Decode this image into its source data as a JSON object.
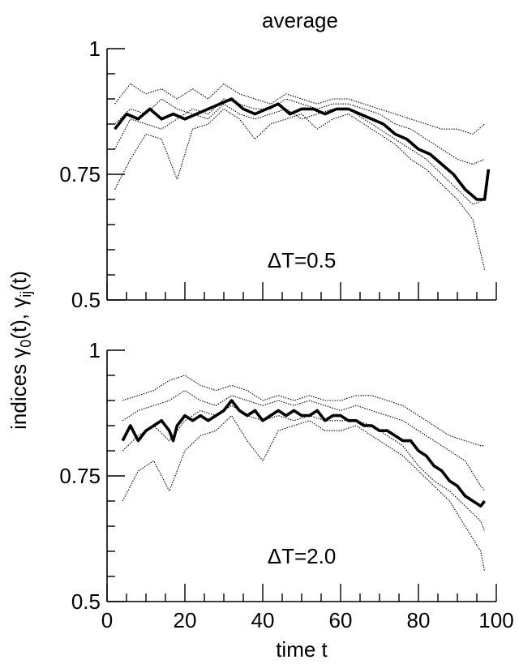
{
  "chart_data": [
    {
      "type": "line",
      "title": "average",
      "ylabel": "indices γ0(t), γij(t)",
      "annotation": "ΔT=0.5",
      "xlim": [
        0,
        100
      ],
      "ylim": [
        0.5,
        1
      ],
      "yticks": [
        0.5,
        0.75,
        1
      ],
      "yticklabels": [
        "0.5",
        "0.75",
        "1"
      ],
      "xticklabels": [],
      "grid": false,
      "series": [
        {
          "style": "thick-solid",
          "x": [
            2,
            5,
            8,
            11,
            14,
            17,
            20,
            23,
            26,
            29,
            32,
            35,
            38,
            41,
            44,
            47,
            50,
            53,
            56,
            59,
            62,
            65,
            68,
            71,
            74,
            77,
            80,
            83,
            86,
            89,
            92,
            95,
            97,
            98
          ],
          "y": [
            0.84,
            0.87,
            0.86,
            0.88,
            0.86,
            0.87,
            0.86,
            0.87,
            0.88,
            0.89,
            0.9,
            0.88,
            0.87,
            0.88,
            0.89,
            0.87,
            0.88,
            0.88,
            0.87,
            0.88,
            0.88,
            0.87,
            0.86,
            0.85,
            0.83,
            0.82,
            0.8,
            0.79,
            0.77,
            0.75,
            0.72,
            0.7,
            0.7,
            0.76
          ]
        },
        {
          "style": "dotted",
          "x": [
            2,
            6,
            10,
            14,
            18,
            22,
            26,
            30,
            34,
            38,
            42,
            46,
            50,
            54,
            58,
            62,
            66,
            70,
            74,
            78,
            82,
            86,
            90,
            94,
            97
          ],
          "y": [
            0.89,
            0.93,
            0.91,
            0.92,
            0.9,
            0.92,
            0.9,
            0.93,
            0.91,
            0.9,
            0.89,
            0.91,
            0.9,
            0.89,
            0.9,
            0.9,
            0.89,
            0.88,
            0.87,
            0.86,
            0.85,
            0.84,
            0.84,
            0.83,
            0.85
          ]
        },
        {
          "style": "dotted",
          "x": [
            2,
            6,
            10,
            14,
            18,
            22,
            26,
            30,
            34,
            38,
            42,
            46,
            50,
            54,
            58,
            62,
            66,
            70,
            74,
            78,
            82,
            86,
            90,
            94,
            97
          ],
          "y": [
            0.8,
            0.86,
            0.85,
            0.84,
            0.86,
            0.88,
            0.87,
            0.9,
            0.89,
            0.88,
            0.88,
            0.9,
            0.89,
            0.88,
            0.89,
            0.89,
            0.88,
            0.87,
            0.85,
            0.84,
            0.82,
            0.8,
            0.78,
            0.77,
            0.78
          ]
        },
        {
          "style": "dotted",
          "x": [
            2,
            6,
            10,
            14,
            18,
            22,
            26,
            30,
            34,
            38,
            42,
            46,
            50,
            54,
            58,
            62,
            66,
            70,
            74,
            78,
            82,
            86,
            90,
            94,
            97
          ],
          "y": [
            0.72,
            0.78,
            0.83,
            0.82,
            0.74,
            0.84,
            0.85,
            0.88,
            0.86,
            0.82,
            0.85,
            0.86,
            0.87,
            0.84,
            0.86,
            0.87,
            0.85,
            0.83,
            0.81,
            0.78,
            0.76,
            0.73,
            0.7,
            0.66,
            0.56
          ]
        },
        {
          "style": "dotted",
          "x": [
            2,
            6,
            10,
            14,
            18,
            22,
            26,
            30,
            34,
            38,
            42,
            46,
            50,
            54,
            58,
            62,
            66,
            70,
            74,
            78,
            82,
            86,
            90,
            94,
            97
          ],
          "y": [
            0.85,
            0.88,
            0.87,
            0.9,
            0.88,
            0.87,
            0.86,
            0.89,
            0.87,
            0.86,
            0.87,
            0.88,
            0.86,
            0.87,
            0.88,
            0.88,
            0.86,
            0.84,
            0.82,
            0.8,
            0.78,
            0.75,
            0.72,
            0.69,
            0.7
          ]
        }
      ]
    },
    {
      "type": "line",
      "annotation": "ΔT=2.0",
      "xlabel": "time t",
      "xlim": [
        0,
        100
      ],
      "ylim": [
        0.5,
        1
      ],
      "xticks": [
        0,
        20,
        40,
        60,
        80,
        100
      ],
      "xticklabels": [
        "0",
        "20",
        "40",
        "60",
        "80",
        "100"
      ],
      "yticks": [
        0.5,
        0.75,
        1
      ],
      "yticklabels": [
        "0.5",
        "0.75",
        "1"
      ],
      "grid": false,
      "series": [
        {
          "style": "thick-solid",
          "x": [
            4,
            6,
            8,
            10,
            12,
            14,
            16,
            17,
            18,
            20,
            22,
            24,
            26,
            28,
            30,
            32,
            34,
            36,
            38,
            40,
            42,
            44,
            46,
            48,
            50,
            52,
            54,
            56,
            58,
            60,
            62,
            64,
            66,
            68,
            70,
            72,
            74,
            76,
            78,
            80,
            82,
            84,
            86,
            88,
            90,
            92,
            94,
            96,
            97
          ],
          "y": [
            0.82,
            0.85,
            0.82,
            0.84,
            0.85,
            0.86,
            0.84,
            0.82,
            0.85,
            0.87,
            0.86,
            0.87,
            0.86,
            0.87,
            0.88,
            0.9,
            0.88,
            0.87,
            0.88,
            0.86,
            0.87,
            0.88,
            0.87,
            0.88,
            0.87,
            0.87,
            0.88,
            0.86,
            0.87,
            0.87,
            0.86,
            0.86,
            0.85,
            0.85,
            0.84,
            0.84,
            0.83,
            0.82,
            0.82,
            0.8,
            0.79,
            0.77,
            0.76,
            0.74,
            0.73,
            0.71,
            0.7,
            0.69,
            0.7
          ]
        },
        {
          "style": "dotted",
          "x": [
            4,
            8,
            12,
            16,
            20,
            24,
            28,
            32,
            36,
            40,
            44,
            48,
            52,
            56,
            60,
            64,
            68,
            72,
            76,
            80,
            84,
            88,
            92,
            96,
            97
          ],
          "y": [
            0.9,
            0.91,
            0.92,
            0.94,
            0.95,
            0.93,
            0.92,
            0.93,
            0.92,
            0.9,
            0.91,
            0.9,
            0.91,
            0.9,
            0.9,
            0.91,
            0.91,
            0.9,
            0.89,
            0.87,
            0.85,
            0.83,
            0.82,
            0.81,
            0.81
          ]
        },
        {
          "style": "dotted",
          "x": [
            4,
            8,
            12,
            16,
            20,
            24,
            28,
            32,
            36,
            40,
            44,
            48,
            52,
            56,
            60,
            64,
            68,
            72,
            76,
            80,
            84,
            88,
            92,
            96,
            97
          ],
          "y": [
            0.86,
            0.88,
            0.89,
            0.9,
            0.92,
            0.9,
            0.89,
            0.91,
            0.9,
            0.89,
            0.9,
            0.89,
            0.9,
            0.89,
            0.88,
            0.89,
            0.88,
            0.87,
            0.86,
            0.84,
            0.82,
            0.8,
            0.78,
            0.73,
            0.72
          ]
        },
        {
          "style": "dotted",
          "x": [
            4,
            8,
            12,
            16,
            20,
            24,
            28,
            32,
            36,
            40,
            44,
            48,
            52,
            56,
            60,
            64,
            68,
            72,
            76,
            80,
            84,
            88,
            92,
            96,
            97
          ],
          "y": [
            0.7,
            0.76,
            0.78,
            0.72,
            0.8,
            0.83,
            0.84,
            0.87,
            0.82,
            0.78,
            0.84,
            0.85,
            0.86,
            0.84,
            0.84,
            0.85,
            0.83,
            0.81,
            0.79,
            0.76,
            0.73,
            0.7,
            0.65,
            0.6,
            0.56
          ]
        },
        {
          "style": "dotted",
          "x": [
            4,
            8,
            12,
            16,
            20,
            24,
            28,
            32,
            36,
            40,
            44,
            48,
            52,
            56,
            60,
            64,
            68,
            72,
            76,
            80,
            84,
            88,
            92,
            96,
            97
          ],
          "y": [
            0.8,
            0.83,
            0.85,
            0.82,
            0.86,
            0.88,
            0.87,
            0.89,
            0.87,
            0.86,
            0.87,
            0.86,
            0.87,
            0.86,
            0.86,
            0.86,
            0.85,
            0.83,
            0.81,
            0.77,
            0.74,
            0.72,
            0.69,
            0.66,
            0.64
          ]
        }
      ]
    }
  ]
}
